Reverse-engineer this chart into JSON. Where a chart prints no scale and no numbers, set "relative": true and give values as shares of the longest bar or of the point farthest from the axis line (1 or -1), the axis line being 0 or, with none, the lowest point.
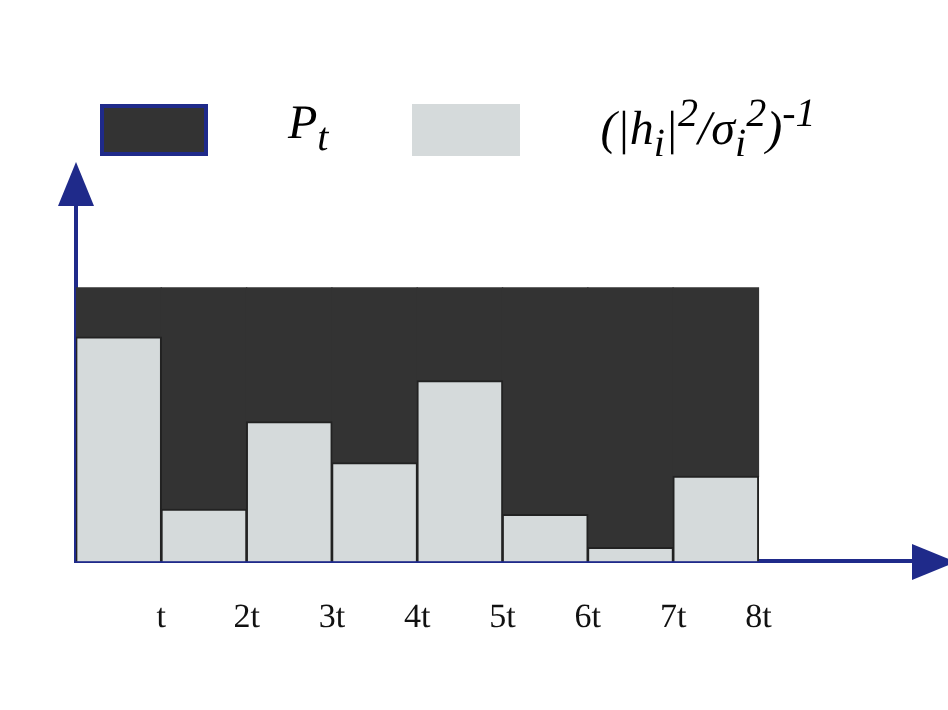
{
  "chart_data": {
    "type": "bar",
    "stacked": true,
    "relative": true,
    "x": [
      0.5,
      1.5,
      2.5,
      3.5,
      4.5,
      5.5,
      6.5,
      7.5
    ],
    "xlim": [
      0,
      9.8
    ],
    "xticks": [
      {
        "value": 1,
        "label": "t"
      },
      {
        "value": 2,
        "label": "2t"
      },
      {
        "value": 3,
        "label": "3t"
      },
      {
        "value": 4,
        "label": "4t"
      },
      {
        "value": 5,
        "label": "5t"
      },
      {
        "value": 6,
        "label": "6t"
      },
      {
        "value": 7,
        "label": "7t"
      },
      {
        "value": 8,
        "label": "8t"
      }
    ],
    "series": [
      {
        "name": "(|h$_{i}$|$^{2}$/σ$_{i}$$^{2}$)$^{-1}$",
        "color": "#d5dadb",
        "values": [
          0.82,
          0.19,
          0.51,
          0.36,
          0.66,
          0.17,
          0.05,
          0.31
        ]
      },
      {
        "name": "P$_{t}$",
        "color": "#333333",
        "values": [
          0.18,
          0.81,
          0.49,
          0.64,
          0.34,
          0.83,
          0.95,
          0.69
        ]
      }
    ],
    "legend": "top",
    "grid": false
  }
}
